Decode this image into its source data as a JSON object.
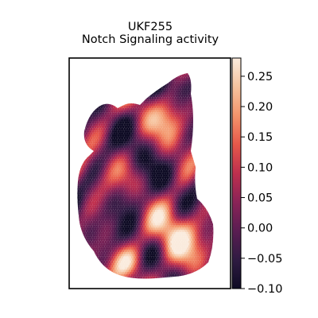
{
  "chart_data": {
    "type": "heatmap",
    "title": "UKF255",
    "subtitle": "Notch Signaling activity",
    "xlabel": "",
    "ylabel": "",
    "axes_ticks_visible": false,
    "grid": false,
    "colormap": "rocket",
    "colormap_stops": [
      "#0e0b24",
      "#2f1b42",
      "#5a1d52",
      "#8a2357",
      "#bf2f4e",
      "#e6584a",
      "#f3946b",
      "#f6c39e",
      "#faebdd"
    ],
    "colorbar": {
      "range": [
        -0.1,
        0.28
      ],
      "ticks": [
        -0.1,
        -0.05,
        0.0,
        0.05,
        0.1,
        0.15,
        0.2,
        0.25
      ],
      "tick_labels": [
        "−0.10",
        "−0.05",
        "0.00",
        "0.05",
        "0.10",
        "0.15",
        "0.20",
        "0.25"
      ],
      "placement": "right"
    },
    "description_of_values": "Spatial spot activity scores ranging from about -0.10 to 0.27",
    "spots_estimated_range": [
      -0.1,
      0.27
    ]
  }
}
